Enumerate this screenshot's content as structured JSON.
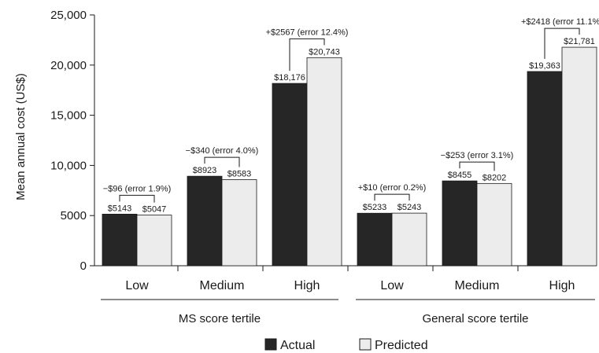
{
  "chart_data": {
    "type": "bar",
    "ylabel": "Mean annual cost (US$)",
    "ylim": [
      0,
      25000
    ],
    "yticks": [
      0,
      5000,
      10000,
      15000,
      20000,
      25000
    ],
    "ytick_labels": [
      "0",
      "5000",
      "10,000",
      "15,000",
      "20,000",
      "25,000"
    ],
    "groups": [
      {
        "label": "MS score tertile",
        "categories": [
          {
            "label": "Low",
            "actual": 5143,
            "predicted": 5047,
            "actual_label": "$5143",
            "predicted_label": "$5047",
            "difference": "−$96 (error 1.9%)"
          },
          {
            "label": "Medium",
            "actual": 8923,
            "predicted": 8583,
            "actual_label": "$8923",
            "predicted_label": "$8583",
            "difference": "−$340 (error 4.0%)"
          },
          {
            "label": "High",
            "actual": 18176,
            "predicted": 20743,
            "actual_label": "$18,176",
            "predicted_label": "$20,743",
            "difference": "+$2567 (error 12.4%)"
          }
        ]
      },
      {
        "label": "General score tertile",
        "categories": [
          {
            "label": "Low",
            "actual": 5233,
            "predicted": 5243,
            "actual_label": "$5233",
            "predicted_label": "$5243",
            "difference": "+$10 (error 0.2%)"
          },
          {
            "label": "Medium",
            "actual": 8455,
            "predicted": 8202,
            "actual_label": "$8455",
            "predicted_label": "$8202",
            "difference": "−$253 (error 3.1%)"
          },
          {
            "label": "High",
            "actual": 19363,
            "predicted": 21781,
            "actual_label": "$19,363",
            "predicted_label": "$21,781",
            "difference": "+$2418 (error 11.1%)"
          }
        ]
      }
    ],
    "series": [
      {
        "name": "Actual",
        "color": "#262626"
      },
      {
        "name": "Predicted",
        "color": "#ececec"
      }
    ],
    "legend_position": "bottom"
  }
}
